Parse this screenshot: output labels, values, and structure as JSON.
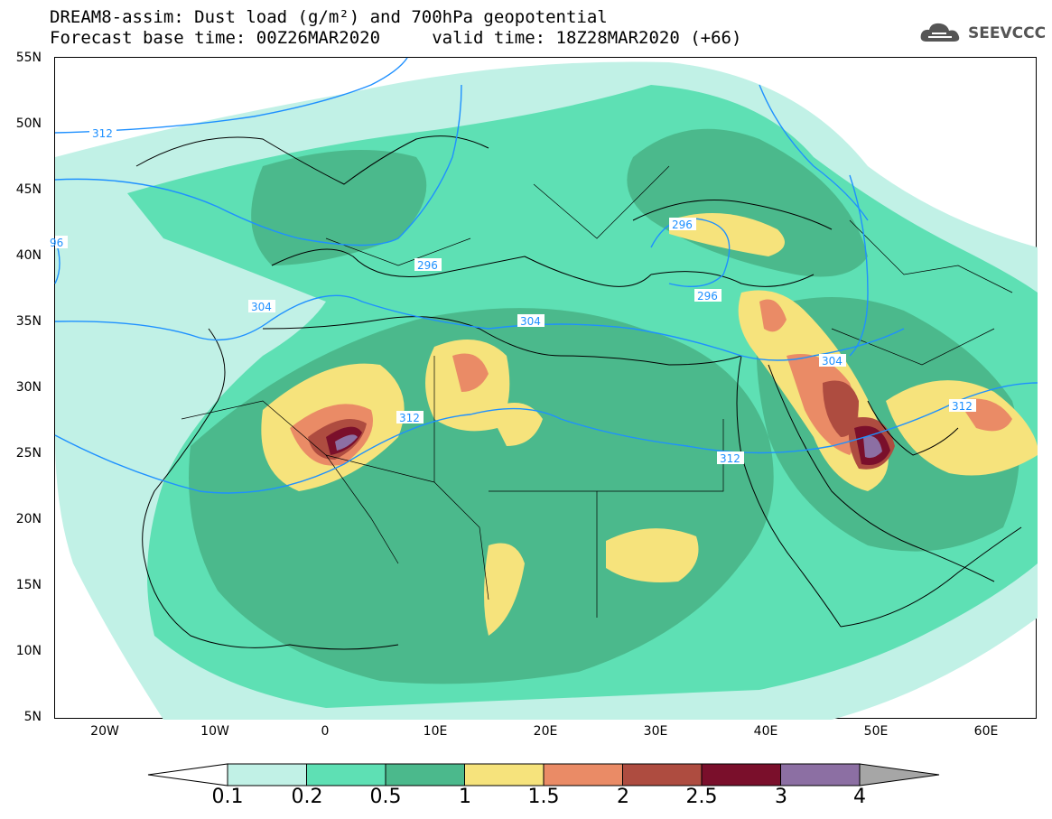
{
  "title": {
    "line1": "DREAM8-assim: Dust load (g/m²) and 700hPa geopotential",
    "line2": "Forecast base time: 00Z26MAR2020     valid time: 18Z28MAR2020 (+66)"
  },
  "logo": {
    "text": "SEEVCCC",
    "icon": "cloud-icon"
  },
  "map": {
    "lat_labels": [
      "55N",
      "50N",
      "45N",
      "40N",
      "35N",
      "30N",
      "25N",
      "20N",
      "15N",
      "10N",
      "5N"
    ],
    "lon_labels": [
      "20W",
      "10W",
      "0",
      "10E",
      "20E",
      "30E",
      "40E",
      "50E",
      "60E"
    ],
    "contour_labels": [
      "312",
      "96",
      "296",
      "304",
      "304",
      "296",
      "296",
      "304",
      "312",
      "312",
      "312"
    ],
    "contour_color": "#1e90ff"
  },
  "colorbar": {
    "labels": [
      "0.1",
      "0.2",
      "0.5",
      "1",
      "1.5",
      "2",
      "2.5",
      "3",
      "4"
    ],
    "colors": [
      "#c1f1e6",
      "#5ee0b4",
      "#4bb98c",
      "#f6e37c",
      "#ea8b66",
      "#ae4c40",
      "#7a0f2b",
      "#8c6fa3"
    ],
    "under_color": "#ffffff",
    "over_color": "#a6a6a6"
  }
}
